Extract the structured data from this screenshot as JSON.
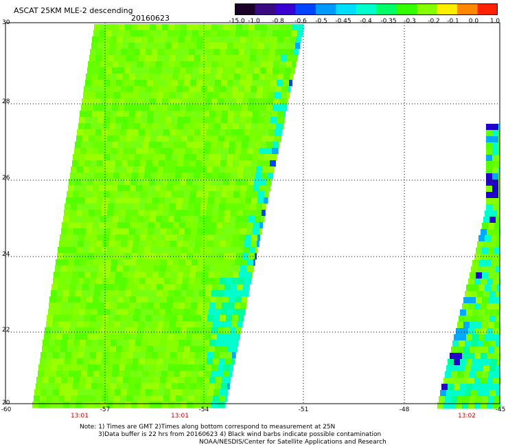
{
  "header": {
    "title": "ASCAT 25KM MLE-2 descending",
    "date": "20160623"
  },
  "colorbar": {
    "labels": [
      "-15.0",
      "-1.0",
      "-0.8",
      "-0.6",
      "-0.5",
      "-0.45",
      "-0.4",
      "-0.35",
      "-0.3",
      "-0.2",
      "-0.1",
      "0.0",
      "1.0"
    ],
    "colors": [
      "#1a0026",
      "#3a0a80",
      "#3a00d0",
      "#0044ff",
      "#0099ff",
      "#00ddff",
      "#00ffcc",
      "#00ff66",
      "#33ff00",
      "#88ff00",
      "#ffee00",
      "#ff8800",
      "#ff2200"
    ]
  },
  "map": {
    "lat_labels": [
      "30",
      "28",
      "26",
      "24",
      "22",
      "20"
    ],
    "lon_labels": [
      "-60",
      "-57",
      "-54",
      "-51",
      "-48",
      "-45"
    ],
    "lat_range": [
      20,
      30
    ],
    "lon_range": [
      -60,
      -45
    ],
    "grid": "dotted",
    "pass_times": [
      "13:01",
      "13:01",
      "13:02"
    ]
  },
  "notes": {
    "line1": "Note: 1) Times are GMT 2)Times along bottom correspond to measurement at 25N",
    "line2": "3)Data buffer is 22 hrs from 20160623 4) Black wind barbs indicate possible contamination",
    "line3": "NOAA/NESDIS/Center for Satellite Applications and Research"
  }
}
